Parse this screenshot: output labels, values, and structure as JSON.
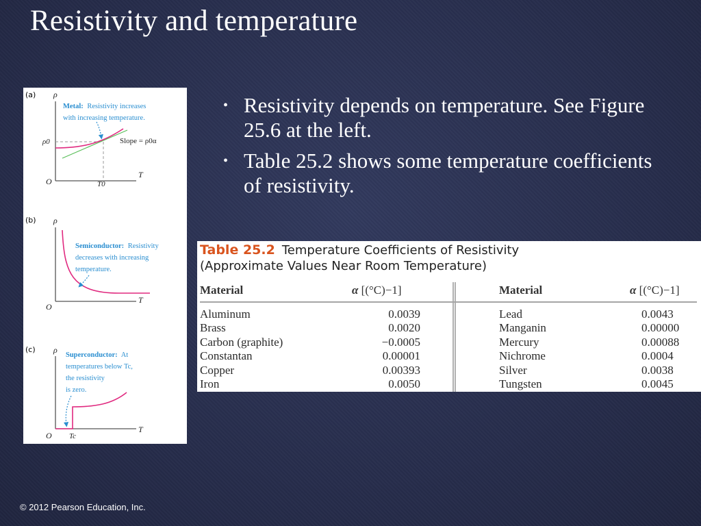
{
  "slide": {
    "title": "Resistivity and temperature",
    "bullets": [
      "Resistivity depends on temperature. See Figure 25.6 at the left.",
      "Table 25.2 shows some temperature coefficients of resistivity."
    ],
    "copyright": "© 2012 Pearson Education, Inc."
  },
  "figure": {
    "panels": [
      {
        "tag": "(a)",
        "y_axis": "ρ",
        "x_axis": "T",
        "origin": "O",
        "caption_bold": "Metal:",
        "caption_line1": "Resistivity increases",
        "caption_line2": "with increasing temperature.",
        "rho0_label": "ρ0",
        "t0_label": "T0",
        "slope_label": "Slope = ρ0α"
      },
      {
        "tag": "(b)",
        "y_axis": "ρ",
        "x_axis": "T",
        "origin": "O",
        "caption_bold": "Semiconductor:",
        "caption_line1": "Resistivity",
        "caption_line2": "decreases with increasing",
        "caption_line3": "temperature."
      },
      {
        "tag": "(c)",
        "y_axis": "ρ",
        "x_axis": "T",
        "origin": "O",
        "caption_bold": "Superconductor:",
        "caption_line1": "At",
        "caption_line2": "temperatures below Tc,",
        "caption_line3": "the resistivity",
        "caption_line4": "is zero.",
        "tc_label": "Tc"
      }
    ],
    "colors": {
      "curve": "#e0297f",
      "slope_line": "#5bbf5b",
      "caption": "#2a8ed0",
      "axis": "#555555"
    }
  },
  "table": {
    "number": "Table 25.2",
    "title": "Temperature Coefficients of Resistivity",
    "subtitle": "(Approximate Values Near Room Temperature)",
    "header_material": "Material",
    "header_alpha": "α",
    "header_unit": "[(°C)−1]",
    "left_rows": [
      {
        "material": "Aluminum",
        "alpha": "0.0039"
      },
      {
        "material": "Brass",
        "alpha": "0.0020"
      },
      {
        "material": "Carbon (graphite)",
        "alpha": "−0.0005"
      },
      {
        "material": "Constantan",
        "alpha": "0.00001"
      },
      {
        "material": "Copper",
        "alpha": "0.00393"
      },
      {
        "material": "Iron",
        "alpha": "0.0050"
      }
    ],
    "right_rows": [
      {
        "material": "Lead",
        "alpha": "0.0043"
      },
      {
        "material": "Manganin",
        "alpha": "0.00000"
      },
      {
        "material": "Mercury",
        "alpha": "0.00088"
      },
      {
        "material": "Nichrome",
        "alpha": "0.0004"
      },
      {
        "material": "Silver",
        "alpha": "0.0038"
      },
      {
        "material": "Tungsten",
        "alpha": "0.0045"
      }
    ],
    "colors": {
      "number": "#d9541e"
    }
  }
}
